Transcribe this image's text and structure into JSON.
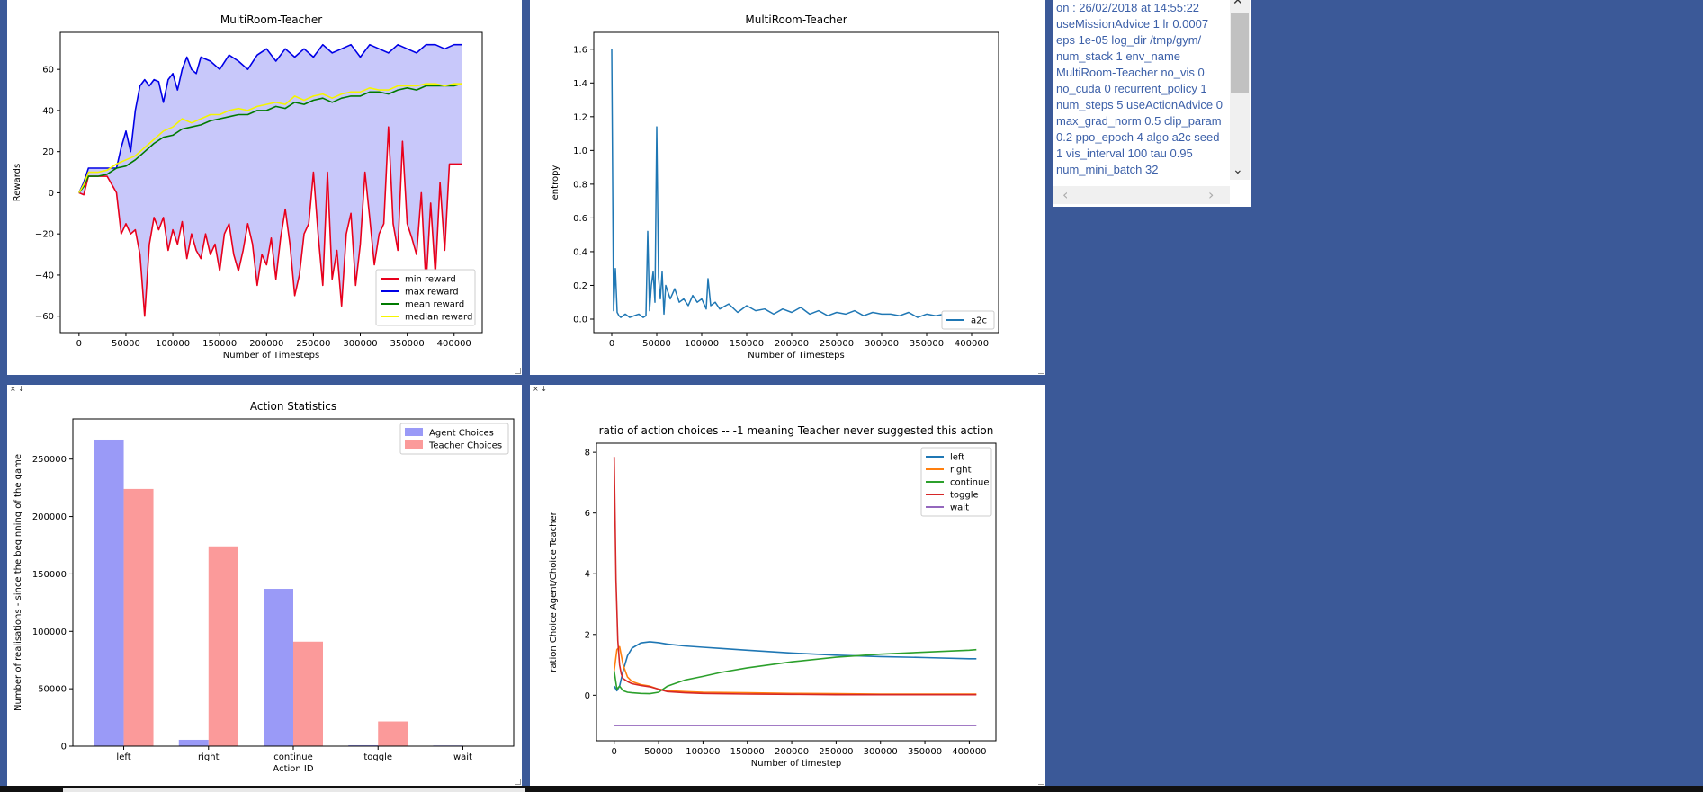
{
  "text_panel": {
    "content": "on : 26/02/2018 at 14:55:22 useMissionAdvice 1 lr 0.0007 eps 1e-05 log_dir /tmp/gym/ num_stack 1 env_name MultiRoom-Teacher no_vis 0 no_cuda 0 recurrent_policy 1 num_steps 5 useActionAdvice 0 max_grad_norm 0.5 clip_param 0.2 ppo_epoch 4 algo a2c seed 1 vis_interval 100 tau 0.95 num_mini_batch 32"
  },
  "pane_controls": {
    "close": "×",
    "down": "↓"
  },
  "chart_data": [
    {
      "type": "line",
      "title": "MultiRoom-Teacher",
      "xlabel": "Number of Timesteps",
      "ylabel": "Rewards",
      "xlim": [
        -20000,
        430000
      ],
      "ylim": [
        -68,
        78
      ],
      "xticks": [
        0,
        50000,
        100000,
        150000,
        200000,
        250000,
        300000,
        350000,
        400000
      ],
      "yticks": [
        -60,
        -40,
        -20,
        0,
        20,
        40,
        60
      ],
      "legend_position": "lower right",
      "fill_between": {
        "lower": "min reward",
        "upper": "max reward",
        "color": "#c8c8fa"
      },
      "series": [
        {
          "name": "min reward",
          "color": "#e8001c",
          "x": [
            0,
            5000,
            10000,
            15000,
            20000,
            30000,
            40000,
            45000,
            50000,
            55000,
            60000,
            65000,
            70000,
            75000,
            80000,
            85000,
            90000,
            95000,
            100000,
            105000,
            110000,
            115000,
            120000,
            125000,
            130000,
            135000,
            140000,
            145000,
            150000,
            155000,
            160000,
            165000,
            170000,
            175000,
            180000,
            185000,
            190000,
            195000,
            200000,
            205000,
            210000,
            215000,
            220000,
            225000,
            230000,
            235000,
            240000,
            245000,
            250000,
            255000,
            260000,
            265000,
            270000,
            275000,
            280000,
            285000,
            290000,
            295000,
            300000,
            305000,
            310000,
            315000,
            320000,
            325000,
            330000,
            335000,
            340000,
            345000,
            350000,
            355000,
            360000,
            365000,
            370000,
            375000,
            380000,
            385000,
            390000,
            395000,
            400000,
            405000,
            408000
          ],
          "y": [
            0,
            -1,
            8,
            8,
            8,
            8,
            0,
            -20,
            -15,
            -20,
            -18,
            -30,
            -60,
            -25,
            -12,
            -18,
            -12,
            -28,
            -18,
            -25,
            -14,
            -32,
            -20,
            -28,
            -32,
            -20,
            -30,
            -25,
            -38,
            -20,
            -15,
            -30,
            -38,
            -28,
            -15,
            -25,
            -45,
            -30,
            -35,
            -22,
            -42,
            -22,
            -8,
            -25,
            -50,
            -40,
            -20,
            -15,
            10,
            -20,
            -45,
            10,
            -42,
            -28,
            -55,
            -20,
            -10,
            -45,
            -25,
            10,
            -12,
            -35,
            -20,
            -15,
            32,
            -15,
            -28,
            25,
            -15,
            -22,
            -30,
            0,
            -45,
            -5,
            -40,
            5,
            -28,
            14,
            14,
            14,
            14
          ]
        },
        {
          "name": "max reward",
          "color": "#0000e6",
          "x": [
            0,
            5000,
            10000,
            20000,
            30000,
            40000,
            45000,
            50000,
            55000,
            60000,
            65000,
            70000,
            75000,
            80000,
            85000,
            90000,
            95000,
            100000,
            105000,
            110000,
            115000,
            120000,
            125000,
            130000,
            140000,
            150000,
            160000,
            170000,
            180000,
            190000,
            200000,
            210000,
            220000,
            230000,
            240000,
            250000,
            260000,
            270000,
            280000,
            290000,
            300000,
            310000,
            320000,
            330000,
            340000,
            350000,
            360000,
            370000,
            380000,
            390000,
            400000,
            408000
          ],
          "y": [
            0,
            5,
            12,
            12,
            12,
            12,
            22,
            30,
            20,
            40,
            52,
            55,
            52,
            55,
            54,
            44,
            55,
            58,
            50,
            60,
            66,
            60,
            58,
            66,
            64,
            60,
            67,
            64,
            60,
            67,
            70,
            64,
            70,
            66,
            70,
            66,
            72,
            68,
            70,
            72,
            66,
            72,
            70,
            68,
            72,
            70,
            68,
            72,
            72,
            70,
            72,
            72
          ]
        },
        {
          "name": "mean reward",
          "color": "#007a00",
          "x": [
            0,
            5000,
            10000,
            20000,
            30000,
            40000,
            50000,
            60000,
            70000,
            80000,
            90000,
            100000,
            110000,
            120000,
            130000,
            140000,
            150000,
            160000,
            170000,
            180000,
            190000,
            200000,
            210000,
            220000,
            230000,
            240000,
            250000,
            260000,
            270000,
            280000,
            290000,
            300000,
            310000,
            320000,
            330000,
            340000,
            350000,
            360000,
            370000,
            380000,
            390000,
            400000,
            408000
          ],
          "y": [
            0,
            3,
            8,
            8,
            9,
            12,
            13,
            16,
            20,
            24,
            27,
            28,
            31,
            32,
            33,
            35,
            36,
            37,
            38,
            38,
            40,
            40,
            42,
            41,
            44,
            43,
            45,
            46,
            44,
            46,
            47,
            47,
            49,
            49,
            48,
            50,
            51,
            50,
            52,
            52,
            52,
            52,
            53
          ]
        },
        {
          "name": "median reward",
          "color": "#f5f500",
          "x": [
            0,
            5000,
            10000,
            20000,
            30000,
            40000,
            50000,
            60000,
            70000,
            80000,
            90000,
            100000,
            110000,
            120000,
            130000,
            140000,
            150000,
            160000,
            170000,
            180000,
            190000,
            200000,
            210000,
            220000,
            230000,
            240000,
            250000,
            260000,
            270000,
            280000,
            290000,
            300000,
            310000,
            320000,
            330000,
            340000,
            350000,
            360000,
            370000,
            380000,
            390000,
            400000,
            408000
          ],
          "y": [
            0,
            4,
            10,
            10,
            11,
            14,
            16,
            18,
            22,
            26,
            30,
            32,
            36,
            34,
            36,
            38,
            38,
            40,
            41,
            40,
            42,
            43,
            44,
            43,
            47,
            45,
            47,
            48,
            46,
            48,
            49,
            49,
            51,
            50,
            50,
            52,
            52,
            52,
            53,
            53,
            52,
            53,
            53
          ]
        }
      ]
    },
    {
      "type": "line",
      "title": "MultiRoom-Teacher",
      "xlabel": "Number of Timesteps",
      "ylabel": "entropy",
      "xlim": [
        -20000,
        430000
      ],
      "ylim": [
        -0.08,
        1.7
      ],
      "xticks": [
        0,
        50000,
        100000,
        150000,
        200000,
        250000,
        300000,
        350000,
        400000
      ],
      "yticks": [
        0.0,
        0.2,
        0.4,
        0.6,
        0.8,
        1.0,
        1.2,
        1.4,
        1.6
      ],
      "legend_position": "lower right",
      "series": [
        {
          "name": "a2c",
          "color": "#1f77b4",
          "x": [
            0,
            2000,
            4000,
            6000,
            8000,
            10000,
            15000,
            20000,
            25000,
            30000,
            35000,
            38000,
            40000,
            42000,
            44000,
            46000,
            48000,
            50000,
            52000,
            54000,
            56000,
            58000,
            60000,
            65000,
            70000,
            75000,
            80000,
            85000,
            90000,
            95000,
            100000,
            105000,
            107000,
            110000,
            115000,
            120000,
            130000,
            140000,
            150000,
            160000,
            170000,
            180000,
            190000,
            200000,
            210000,
            220000,
            230000,
            240000,
            250000,
            260000,
            270000,
            280000,
            290000,
            300000,
            310000,
            320000,
            330000,
            340000,
            350000,
            360000,
            370000,
            380000,
            390000,
            400000,
            408000
          ],
          "y": [
            1.6,
            0.05,
            0.3,
            0.04,
            0.02,
            0.01,
            0.03,
            0.01,
            0.02,
            0.03,
            0.01,
            0.02,
            0.52,
            0.05,
            0.2,
            0.28,
            0.1,
            1.14,
            0.25,
            0.12,
            0.28,
            0.03,
            0.2,
            0.12,
            0.18,
            0.1,
            0.12,
            0.08,
            0.14,
            0.1,
            0.12,
            0.06,
            0.24,
            0.08,
            0.1,
            0.06,
            0.09,
            0.04,
            0.08,
            0.05,
            0.06,
            0.03,
            0.06,
            0.04,
            0.07,
            0.03,
            0.05,
            0.02,
            0.04,
            0.03,
            0.05,
            0.02,
            0.04,
            0.03,
            0.03,
            0.02,
            0.04,
            0.01,
            0.03,
            0.02,
            0.03,
            0.01,
            0.02,
            0.03,
            0.02
          ]
        }
      ]
    },
    {
      "type": "bar",
      "title": "Action Statistics",
      "xlabel": "Action ID",
      "ylabel": "Number of realisations - since the beginning of the game",
      "categories": [
        "left",
        "right",
        "continue",
        "toggle",
        "wait"
      ],
      "ylim": [
        0,
        285000
      ],
      "yticks": [
        0,
        50000,
        100000,
        150000,
        200000,
        250000
      ],
      "legend_position": "upper right",
      "series": [
        {
          "name": "Agent Choices",
          "color": "#9a9af7",
          "values": [
            267000,
            5500,
            137000,
            800,
            600
          ]
        },
        {
          "name": "Teacher Choices",
          "color": "#fb9a9a",
          "values": [
            224000,
            174000,
            91000,
            21500,
            0
          ]
        }
      ]
    },
    {
      "type": "line",
      "title": "ratio of action choices -- -1 meaning Teacher never suggested this action",
      "xlabel": "Number of timestep",
      "ylabel": "ration Choice Agent/Choice Teacher",
      "xlim": [
        -20000,
        430000
      ],
      "ylim": [
        -1.5,
        8.3
      ],
      "xticks": [
        0,
        50000,
        100000,
        150000,
        200000,
        250000,
        300000,
        350000,
        400000
      ],
      "yticks": [
        0,
        2,
        4,
        6,
        8
      ],
      "legend_position": "upper right",
      "series": [
        {
          "name": "left",
          "color": "#1f77b4",
          "x": [
            0,
            3000,
            6000,
            10000,
            15000,
            20000,
            30000,
            40000,
            50000,
            60000,
            80000,
            100000,
            120000,
            150000,
            200000,
            250000,
            300000,
            350000,
            400000,
            408000
          ],
          "y": [
            0.3,
            0.15,
            0.3,
            0.8,
            1.3,
            1.55,
            1.72,
            1.76,
            1.73,
            1.68,
            1.62,
            1.58,
            1.54,
            1.48,
            1.39,
            1.32,
            1.27,
            1.24,
            1.2,
            1.2
          ]
        },
        {
          "name": "right",
          "color": "#ff7f0e",
          "x": [
            0,
            3000,
            6000,
            10000,
            15000,
            20000,
            30000,
            40000,
            50000,
            60000,
            80000,
            100000,
            150000,
            200000,
            250000,
            300000,
            350000,
            400000,
            408000
          ],
          "y": [
            0.8,
            1.5,
            1.6,
            1.0,
            0.6,
            0.45,
            0.35,
            0.3,
            0.2,
            0.15,
            0.12,
            0.1,
            0.08,
            0.06,
            0.05,
            0.04,
            0.04,
            0.04,
            0.04
          ]
        },
        {
          "name": "continue",
          "color": "#2ca02c",
          "x": [
            0,
            3000,
            6000,
            10000,
            15000,
            20000,
            30000,
            40000,
            50000,
            60000,
            70000,
            80000,
            100000,
            120000,
            150000,
            200000,
            250000,
            300000,
            350000,
            400000,
            408000
          ],
          "y": [
            0.8,
            0.2,
            0.3,
            0.15,
            0.1,
            0.08,
            0.06,
            0.05,
            0.1,
            0.3,
            0.4,
            0.5,
            0.62,
            0.75,
            0.9,
            1.1,
            1.25,
            1.35,
            1.42,
            1.48,
            1.5
          ]
        },
        {
          "name": "toggle",
          "color": "#d62728",
          "x": [
            0,
            2000,
            4000,
            6000,
            8000,
            10000,
            15000,
            20000,
            30000,
            40000,
            50000,
            60000,
            80000,
            100000,
            150000,
            200000,
            250000,
            300000,
            350000,
            400000,
            408000
          ],
          "y": [
            7.85,
            3.8,
            1.8,
            1.0,
            0.7,
            0.55,
            0.45,
            0.38,
            0.32,
            0.28,
            0.2,
            0.12,
            0.08,
            0.06,
            0.04,
            0.03,
            0.02,
            0.02,
            0.02,
            0.02,
            0.02
          ]
        },
        {
          "name": "wait",
          "color": "#9467bd",
          "x": [
            0,
            408000
          ],
          "y": [
            -1,
            -1
          ]
        }
      ]
    }
  ]
}
